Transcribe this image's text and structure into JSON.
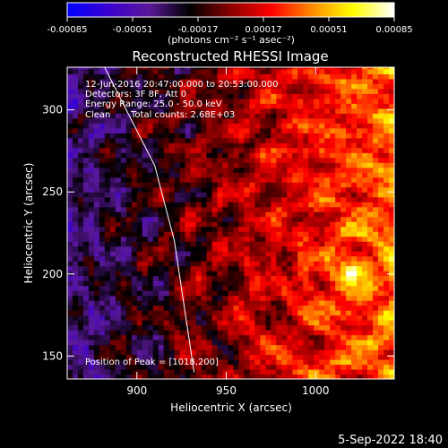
{
  "chart_data": [
    {
      "type": "heatmap",
      "title": "Reconstructed RHESSI Image",
      "xlabel": "Heliocentric X (arcsec)",
      "ylabel": "Heliocentric Y (arcsec)",
      "xlim": [
        861,
        1044
      ],
      "ylim": [
        136,
        326
      ],
      "x_ticks": [
        900,
        950,
        1000
      ],
      "y_ticks": [
        150,
        200,
        250,
        300
      ],
      "x_tick_labels": [
        "900",
        "950",
        "1000"
      ],
      "y_tick_labels": [
        "150",
        "200",
        "250",
        "300"
      ],
      "annotations": {
        "time_range": "12-Jun-2016 20:47:00.000 to 20:53:00.000",
        "detectors": "Detectors: 3F 8F, Att 0",
        "energy": "Energy Range: 25.0 - 50.0 keV",
        "method": "Clean",
        "counts": "Total counts: 2.68E+03",
        "peak": "Position of Peak = [1018,200]"
      },
      "peak": [
        1018,
        200
      ],
      "limb_line": [
        [
          880,
          330
        ],
        [
          910,
          266
        ],
        [
          921,
          220
        ],
        [
          932,
          140
        ]
      ],
      "color_scale": {
        "min": -0.00085,
        "max": 0.00085
      },
      "grid": false
    },
    {
      "type": "heatmap",
      "role": "colorbar",
      "ticks": [
        -0.00085,
        -0.00051,
        -0.00017,
        0.00017,
        0.00051,
        0.00085
      ],
      "tick_labels": [
        "-0.00085",
        "-0.00051",
        "-0.00017",
        "0.00017",
        "0.00051",
        "0.00085"
      ],
      "units_label": "(photons cm⁻² s⁻¹ asec⁻²)",
      "colors": [
        "#0000ff",
        "#3a00d0",
        "#5a189a",
        "#000000",
        "#8b0000",
        "#ff0000",
        "#ff8c00",
        "#ffff00",
        "#ffffff"
      ]
    }
  ],
  "footer": {
    "date": "5-Sep-2022 18:40"
  }
}
